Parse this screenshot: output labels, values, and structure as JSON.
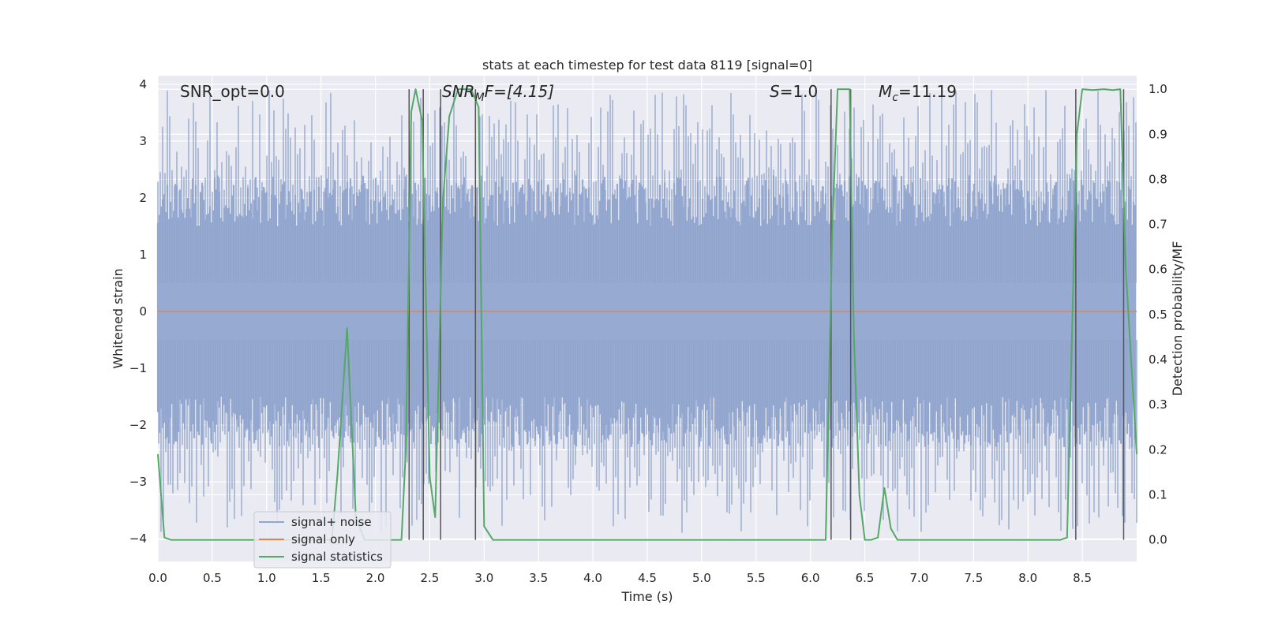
{
  "chart_data": {
    "type": "line",
    "title": "stats at each timestep for test data 8119 [signal=0]",
    "xlabel": "Time (s)",
    "ylabel": "Whitened strain",
    "y2label": "Detection probability/MF",
    "xlim": [
      0.0,
      9.0
    ],
    "ylim": [
      -4.4,
      4.15
    ],
    "y2lim": [
      -0.048,
      1.03
    ],
    "xticks": [
      "0.0",
      "0.5",
      "1.0",
      "1.5",
      "2.0",
      "2.5",
      "3.0",
      "3.5",
      "4.0",
      "4.5",
      "5.0",
      "5.5",
      "6.0",
      "6.5",
      "7.0",
      "7.5",
      "8.0",
      "8.5"
    ],
    "yticks": [
      "4",
      "3",
      "2",
      "1",
      "0",
      "−1",
      "−2",
      "−3",
      "−4"
    ],
    "y2ticks": [
      "1.0",
      "0.9",
      "0.8",
      "0.7",
      "0.6",
      "0.5",
      "0.4",
      "0.3",
      "0.2",
      "0.1",
      "0.0"
    ],
    "grid": true,
    "legend_position": "lower-left",
    "annotations": {
      "snr_opt": "SNR_opt=0.0",
      "snr_mf_main": "SNR",
      "snr_mf_sub": "M",
      "snr_mf_rest": "F=[4.15]",
      "s_main": "S",
      "s_rest": "=1.0",
      "mc_main": "M",
      "mc_sub": "c",
      "mc_rest": "=11.19"
    },
    "series": [
      {
        "name": "signal+ noise",
        "color": "#8fa6cf",
        "kind": "noise",
        "description_values": "whitened strain noise, amplitude roughly within [-3.9, 3.9]"
      },
      {
        "name": "signal only",
        "color": "#dd8452",
        "x": [
          0.0,
          9.0
        ],
        "y": [
          0.0,
          0.0
        ]
      },
      {
        "name": "signal statistics",
        "color": "#55a868",
        "axis": "right",
        "x": [
          0.0,
          0.06,
          0.12,
          0.2,
          1.6,
          1.65,
          1.74,
          1.82,
          1.9,
          2.24,
          2.28,
          2.33,
          2.37,
          2.43,
          2.5,
          2.55,
          2.62,
          2.68,
          2.76,
          2.88,
          2.95,
          3.0,
          3.08,
          6.14,
          6.2,
          6.25,
          6.36,
          6.4,
          6.45,
          6.5,
          6.56,
          6.62,
          6.68,
          6.74,
          6.8,
          8.3,
          8.36,
          8.45,
          8.5,
          8.6,
          8.7,
          8.78,
          8.85,
          8.9,
          9.0
        ],
        "y": [
          0.19,
          0.005,
          0.0,
          0.0,
          0.0,
          0.14,
          0.47,
          0.05,
          0.0,
          0.0,
          0.2,
          0.95,
          1.0,
          0.93,
          0.14,
          0.05,
          0.75,
          0.94,
          1.0,
          1.0,
          0.96,
          0.03,
          0.0,
          0.0,
          0.68,
          1.0,
          1.0,
          0.45,
          0.1,
          0.0,
          0.0,
          0.005,
          0.115,
          0.025,
          0.0,
          0.0,
          0.005,
          0.9,
          1.0,
          0.998,
          1.0,
          0.998,
          1.0,
          0.6,
          0.19
        ]
      }
    ],
    "vertical_markers": [
      2.31,
      2.44,
      2.6,
      2.92,
      6.19,
      6.37,
      8.44,
      8.88
    ]
  }
}
